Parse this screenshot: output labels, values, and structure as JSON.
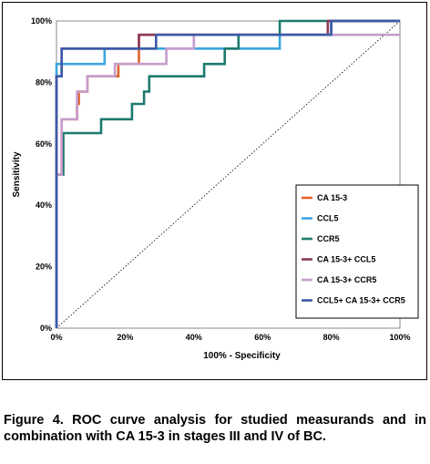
{
  "caption": "Figure 4. ROC curve analysis for studied measurands and in combination with CA 15-3 in stages III and IV of BC.",
  "chart_data": {
    "type": "line",
    "title": "",
    "xlabel": "100% - Specificity",
    "ylabel": "Sensitivity",
    "xlim": [
      0,
      100
    ],
    "ylim": [
      0,
      100
    ],
    "x_ticks": [
      "0%",
      "20%",
      "40%",
      "60%",
      "80%",
      "100%"
    ],
    "y_ticks": [
      "0%",
      "20%",
      "40%",
      "60%",
      "80%",
      "100%"
    ],
    "grid": false,
    "legend_position": "bottom-right",
    "reference_line": {
      "style": "dotted",
      "x": [
        0,
        100
      ],
      "y": [
        0,
        100
      ]
    },
    "series": [
      {
        "name": "CA 15-3",
        "color": "#e0612a",
        "x": [
          0,
          0,
          1.5,
          1.5,
          6,
          6,
          6.5,
          6.5,
          9,
          9,
          15,
          15,
          18,
          18,
          24,
          24,
          80,
          80,
          100
        ],
        "y": [
          0,
          50,
          50,
          68,
          68,
          73,
          73,
          77,
          77,
          82,
          82,
          82,
          82,
          86,
          86,
          95.5,
          95.5,
          100,
          100
        ]
      },
      {
        "name": "CCL5",
        "color": "#3ba6dd",
        "x": [
          0,
          0,
          14,
          14,
          48,
          48,
          65,
          65,
          80,
          80,
          100
        ],
        "y": [
          0,
          86,
          86,
          91,
          91,
          91,
          91,
          95.5,
          95.5,
          100,
          100
        ]
      },
      {
        "name": "CCR5",
        "color": "#1c7a6e",
        "x": [
          0,
          0,
          2,
          2,
          13,
          13,
          19,
          19,
          22,
          22,
          25.5,
          25.5,
          27,
          27,
          39,
          39,
          43,
          43,
          49,
          49,
          53,
          53,
          65,
          65,
          100
        ],
        "y": [
          0,
          50,
          50,
          63.5,
          63.5,
          68,
          68,
          68,
          68,
          73,
          73,
          77,
          77,
          82,
          82,
          82,
          82,
          86,
          86,
          91,
          91,
          95.5,
          95.5,
          100,
          100
        ]
      },
      {
        "name": "CA 15-3+ CCL5",
        "color": "#8b3a5a",
        "x": [
          0,
          0,
          1.5,
          1.5,
          24,
          24,
          79,
          79,
          100
        ],
        "y": [
          0,
          82,
          82,
          91,
          91,
          95.5,
          95.5,
          100,
          100
        ]
      },
      {
        "name": "CA 15-3+ CCR5",
        "color": "#c79ccd",
        "x": [
          0,
          0,
          1.5,
          1.5,
          6,
          6,
          9,
          9,
          17,
          17,
          32,
          32,
          40,
          40,
          100
        ],
        "y": [
          0,
          50,
          50,
          68,
          68,
          77,
          77,
          82,
          82,
          86,
          86,
          91,
          91,
          95.5,
          95.5
        ]
      },
      {
        "name": "CCL5+ CA 15-3+ CCR5",
        "color": "#3c5aa8",
        "x": [
          0,
          0,
          1.5,
          1.5,
          29,
          29,
          80,
          80,
          100
        ],
        "y": [
          0,
          82,
          82,
          91,
          91,
          95.5,
          95.5,
          100,
          100
        ]
      }
    ]
  }
}
